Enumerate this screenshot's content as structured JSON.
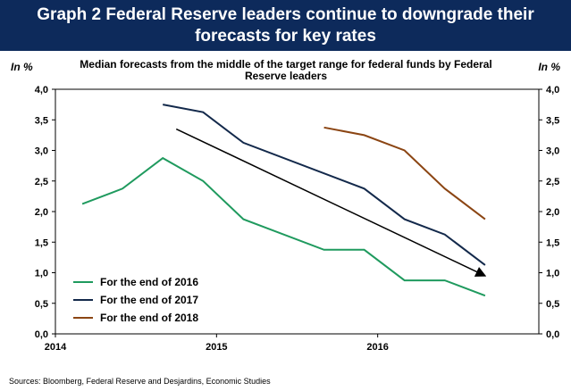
{
  "header": {
    "title": "Graph 2    Federal Reserve leaders continue to downgrade their forecasts for key rates"
  },
  "unit_left": "In %",
  "unit_right": "In %",
  "source": "Sources: Bloomberg, Federal Reserve and Desjardins, Economic Studies",
  "chart_data": {
    "type": "line",
    "title": "Median forecasts from the middle of the target range for federal funds by Federal Reserve leaders",
    "ylabel": "In %",
    "ylim": [
      0,
      4
    ],
    "xlim": [
      "2014-01",
      "2016-12"
    ],
    "y_ticks": [
      "0,0",
      "0,5",
      "1,0",
      "1,5",
      "2,0",
      "2,5",
      "3,0",
      "3,5",
      "4,0"
    ],
    "x_ticks": [
      "2014",
      "2015",
      "2016"
    ],
    "grid": false,
    "legend_position": "bottom-left",
    "series": [
      {
        "name": "For the end of 2016",
        "color": "#1f9a5e",
        "points": [
          [
            "2014-03",
            2.125
          ],
          [
            "2014-06",
            2.375
          ],
          [
            "2014-09",
            2.875
          ],
          [
            "2014-12",
            2.5
          ],
          [
            "2015-03",
            1.875
          ],
          [
            "2015-09",
            1.375
          ],
          [
            "2015-12",
            1.375
          ],
          [
            "2016-03",
            0.875
          ],
          [
            "2016-06",
            0.875
          ],
          [
            "2016-09",
            0.625
          ]
        ]
      },
      {
        "name": "For the end of 2017",
        "color": "#13294b",
        "points": [
          [
            "2014-09",
            3.75
          ],
          [
            "2014-12",
            3.625
          ],
          [
            "2015-03",
            3.125
          ],
          [
            "2015-12",
            2.375
          ],
          [
            "2016-03",
            1.875
          ],
          [
            "2016-06",
            1.625
          ],
          [
            "2016-09",
            1.125
          ]
        ]
      },
      {
        "name": "For the end of 2018",
        "color": "#8b4513",
        "points": [
          [
            "2015-09",
            3.375
          ],
          [
            "2015-12",
            3.25
          ],
          [
            "2016-03",
            3.0
          ],
          [
            "2016-06",
            2.375
          ],
          [
            "2016-09",
            1.875
          ]
        ]
      }
    ],
    "annotations": [
      {
        "type": "arrow",
        "color": "#000000",
        "from": [
          "2014-10",
          3.35
        ],
        "to": [
          "2016-09",
          0.95
        ]
      }
    ]
  }
}
